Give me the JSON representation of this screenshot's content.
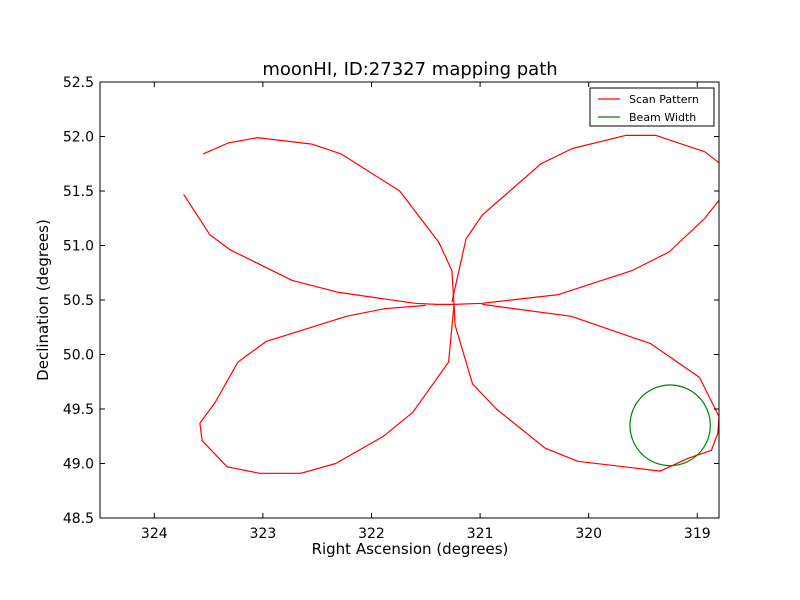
{
  "chart_data": {
    "type": "line",
    "title": "moonHI, ID:27327 mapping path",
    "xlabel": "Right Ascension (degrees)",
    "ylabel": "Declination (degrees)",
    "xlim": [
      324.5,
      318.8
    ],
    "ylim": [
      48.5,
      52.5
    ],
    "x_reversed": true,
    "xticks": [
      324,
      323,
      322,
      321,
      320,
      319
    ],
    "yticks": [
      48.5,
      49.0,
      49.5,
      50.0,
      50.5,
      51.0,
      51.5,
      52.0,
      52.5
    ],
    "xtick_labels": [
      "324",
      "323",
      "322",
      "321",
      "320",
      "319"
    ],
    "ytick_labels": [
      "48.5",
      "49.0",
      "49.5",
      "50.0",
      "50.5",
      "51.0",
      "51.5",
      "52.0",
      "52.5"
    ],
    "grid": false,
    "legend_position": "top-right",
    "series": [
      {
        "name": "Scan Pattern",
        "color": "#ff0000",
        "points": [
          [
            323.55,
            51.84
          ],
          [
            323.32,
            51.94
          ],
          [
            323.05,
            51.99
          ],
          [
            322.55,
            51.93
          ],
          [
            322.28,
            51.84
          ],
          [
            321.74,
            51.5
          ],
          [
            321.38,
            51.03
          ],
          [
            321.26,
            50.77
          ],
          [
            321.24,
            50.46
          ],
          [
            321.4,
            50.46
          ],
          [
            321.6,
            50.47
          ],
          [
            322.3,
            50.57
          ],
          [
            322.73,
            50.68
          ],
          [
            323.3,
            50.96
          ],
          [
            323.49,
            51.1
          ],
          [
            323.73,
            51.47
          ]
        ]
      },
      {
        "name": "",
        "color": "#ff0000",
        "points": [
          [
            321.26,
            50.48
          ],
          [
            321.13,
            51.06
          ],
          [
            320.98,
            51.28
          ],
          [
            320.44,
            51.75
          ],
          [
            320.15,
            51.89
          ],
          [
            319.66,
            52.01
          ],
          [
            319.38,
            52.01
          ],
          [
            318.93,
            51.86
          ],
          [
            318.8,
            51.76
          ],
          [
            318.78,
            51.44
          ],
          [
            318.93,
            51.25
          ],
          [
            319.26,
            50.94
          ],
          [
            319.6,
            50.77
          ],
          [
            320.28,
            50.55
          ],
          [
            320.98,
            50.47
          ],
          [
            321.24,
            50.46
          ]
        ]
      },
      {
        "name": "",
        "color": "#ff0000",
        "points": [
          [
            321.24,
            50.46
          ],
          [
            321.23,
            50.27
          ],
          [
            321.07,
            49.73
          ],
          [
            320.85,
            49.5
          ],
          [
            320.4,
            49.14
          ],
          [
            320.1,
            49.02
          ],
          [
            319.34,
            48.93
          ],
          [
            319.08,
            49.05
          ],
          [
            318.87,
            49.12
          ],
          [
            318.81,
            49.28
          ],
          [
            318.8,
            49.43
          ],
          [
            318.98,
            49.79
          ],
          [
            319.43,
            50.1
          ],
          [
            319.81,
            50.23
          ],
          [
            320.16,
            50.35
          ],
          [
            320.98,
            50.46
          ]
        ]
      },
      {
        "name": "",
        "color": "#ff0000",
        "points": [
          [
            321.24,
            50.46
          ],
          [
            321.29,
            49.93
          ],
          [
            321.62,
            49.47
          ],
          [
            321.89,
            49.25
          ],
          [
            322.33,
            49.0
          ],
          [
            322.65,
            48.91
          ],
          [
            323.03,
            48.91
          ],
          [
            323.33,
            48.97
          ],
          [
            323.56,
            49.21
          ],
          [
            323.58,
            49.37
          ],
          [
            323.44,
            49.56
          ],
          [
            323.23,
            49.93
          ],
          [
            322.97,
            50.12
          ],
          [
            322.23,
            50.35
          ],
          [
            321.88,
            50.42
          ],
          [
            321.5,
            50.45
          ]
        ]
      },
      {
        "name": "Beam Width",
        "color": "#008000",
        "type": "circle",
        "center": [
          319.25,
          49.35
        ],
        "radius": 0.37
      }
    ]
  }
}
